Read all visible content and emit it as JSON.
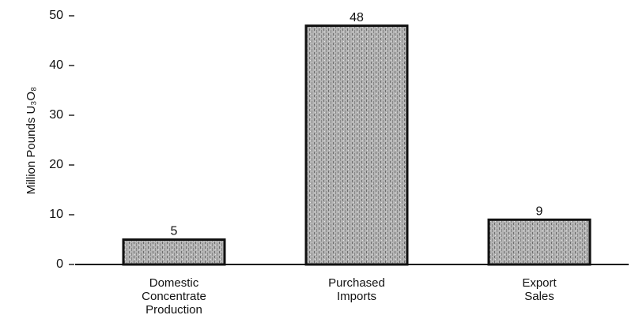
{
  "chart_data": {
    "type": "bar",
    "y_label": "Million Pounds U₃O₈",
    "categories": [
      "Domestic Concentrate Production",
      "Purchased Imports",
      "Export Sales"
    ],
    "values": [
      5,
      48,
      9
    ],
    "color": "#a9a9a9",
    "ylim": [
      0,
      50
    ],
    "yticks": [
      0,
      10,
      20,
      30,
      40,
      50
    ]
  }
}
